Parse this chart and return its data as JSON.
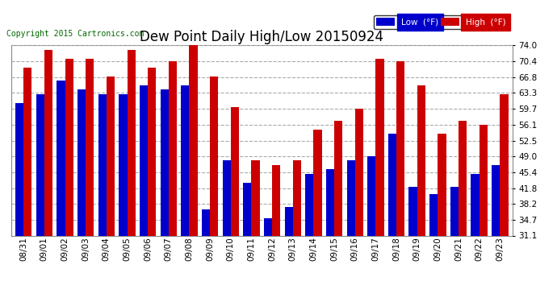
{
  "title": "Dew Point Daily High/Low 20150924",
  "copyright": "Copyright 2015 Cartronics.com",
  "background_color": "#ffffff",
  "plot_bg_color": "#ffffff",
  "bar_color_low": "#0000cc",
  "bar_color_high": "#cc0000",
  "ylim": [
    31.1,
    74.0
  ],
  "yticks": [
    31.1,
    34.7,
    38.2,
    41.8,
    45.4,
    49.0,
    52.5,
    56.1,
    59.7,
    63.3,
    66.8,
    70.4,
    74.0
  ],
  "dates": [
    "08/31",
    "09/01",
    "09/02",
    "09/03",
    "09/04",
    "09/05",
    "09/06",
    "09/07",
    "09/08",
    "09/09",
    "09/10",
    "09/11",
    "09/12",
    "09/13",
    "09/14",
    "09/15",
    "09/16",
    "09/17",
    "09/18",
    "09/19",
    "09/20",
    "09/21",
    "09/22",
    "09/23"
  ],
  "low": [
    61.0,
    63.0,
    66.0,
    64.0,
    63.0,
    63.0,
    65.0,
    64.0,
    65.0,
    37.0,
    48.0,
    43.0,
    35.0,
    37.5,
    45.0,
    46.0,
    48.0,
    49.0,
    54.0,
    42.0,
    40.5,
    42.0,
    45.0,
    47.0
  ],
  "high": [
    69.0,
    73.0,
    71.0,
    71.0,
    67.0,
    73.0,
    69.0,
    70.4,
    74.0,
    67.0,
    60.0,
    48.0,
    47.0,
    48.0,
    55.0,
    57.0,
    59.7,
    71.0,
    70.4,
    65.0,
    54.0,
    57.0,
    56.0,
    63.0
  ],
  "grid_color": "#aaaaaa",
  "title_fontsize": 12,
  "tick_fontsize": 7.5,
  "copyright_fontsize": 7,
  "bar_width": 0.4
}
